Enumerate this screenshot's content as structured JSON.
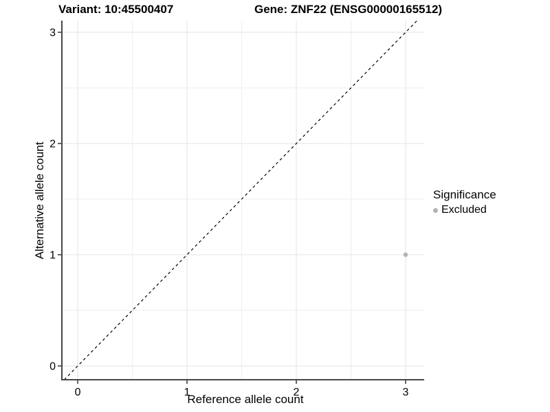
{
  "chart_data": {
    "type": "scatter",
    "title_left": "Variant: 10:45500407",
    "title_right": "Gene: ZNF22 (ENSG00000165512)",
    "xlabel": "Reference allele count",
    "ylabel": "Alternative allele count",
    "xlim": [
      -0.145,
      3.17
    ],
    "ylim": [
      -0.124,
      3.105
    ],
    "x_ticks": [
      0,
      1,
      2,
      3
    ],
    "y_ticks": [
      0,
      1,
      2,
      3
    ],
    "minor_ticks_x": [
      0.5,
      1.5,
      2.5
    ],
    "minor_ticks_y": [
      0.5,
      1.5,
      2.5
    ],
    "grid": true,
    "reference_line": {
      "slope": 1,
      "intercept": 0,
      "style": "dashed",
      "color": "#000000"
    },
    "series": [
      {
        "name": "Excluded",
        "color": "#b3b3b3",
        "points": [
          {
            "x": 3,
            "y": 1
          }
        ]
      }
    ],
    "legend": {
      "title": "Significance",
      "position": "right",
      "items": [
        {
          "label": "Excluded",
          "color": "#b3b3b3"
        }
      ]
    },
    "style": {
      "grid_major": "#e3e3e3",
      "grid_minor": "#eeeeee",
      "axis_line": "#464646",
      "tick_mark": "#333333",
      "text": "#000000",
      "point_radius_px": 3.2
    }
  }
}
